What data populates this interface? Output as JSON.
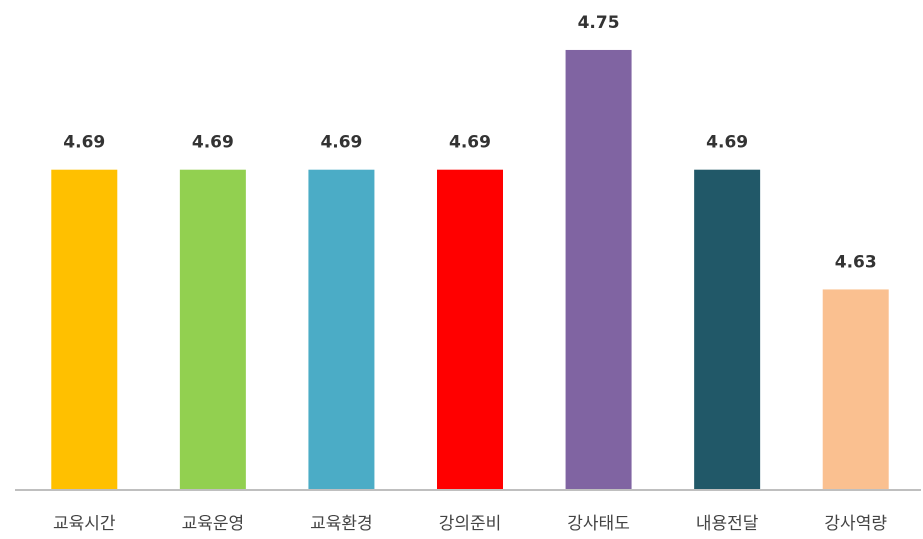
{
  "chart_data": {
    "type": "bar",
    "categories": [
      "교육시간",
      "교육운영",
      "교육환경",
      "강의준비",
      "강사태도",
      "내용전달",
      "강사역량"
    ],
    "values": [
      4.69,
      4.69,
      4.69,
      4.69,
      4.75,
      4.69,
      4.63
    ],
    "data_labels": [
      "4.69",
      "4.69",
      "4.69",
      "4.69",
      "4.75",
      "4.69",
      "4.63"
    ],
    "colors": [
      "#FFC000",
      "#92D050",
      "#4BACC6",
      "#FF0000",
      "#8064A2",
      "#215868",
      "#FAC090"
    ],
    "title": "",
    "xlabel": "",
    "ylabel": "",
    "ylim": [
      4.53,
      4.76
    ],
    "grid": false,
    "legend": "none"
  }
}
